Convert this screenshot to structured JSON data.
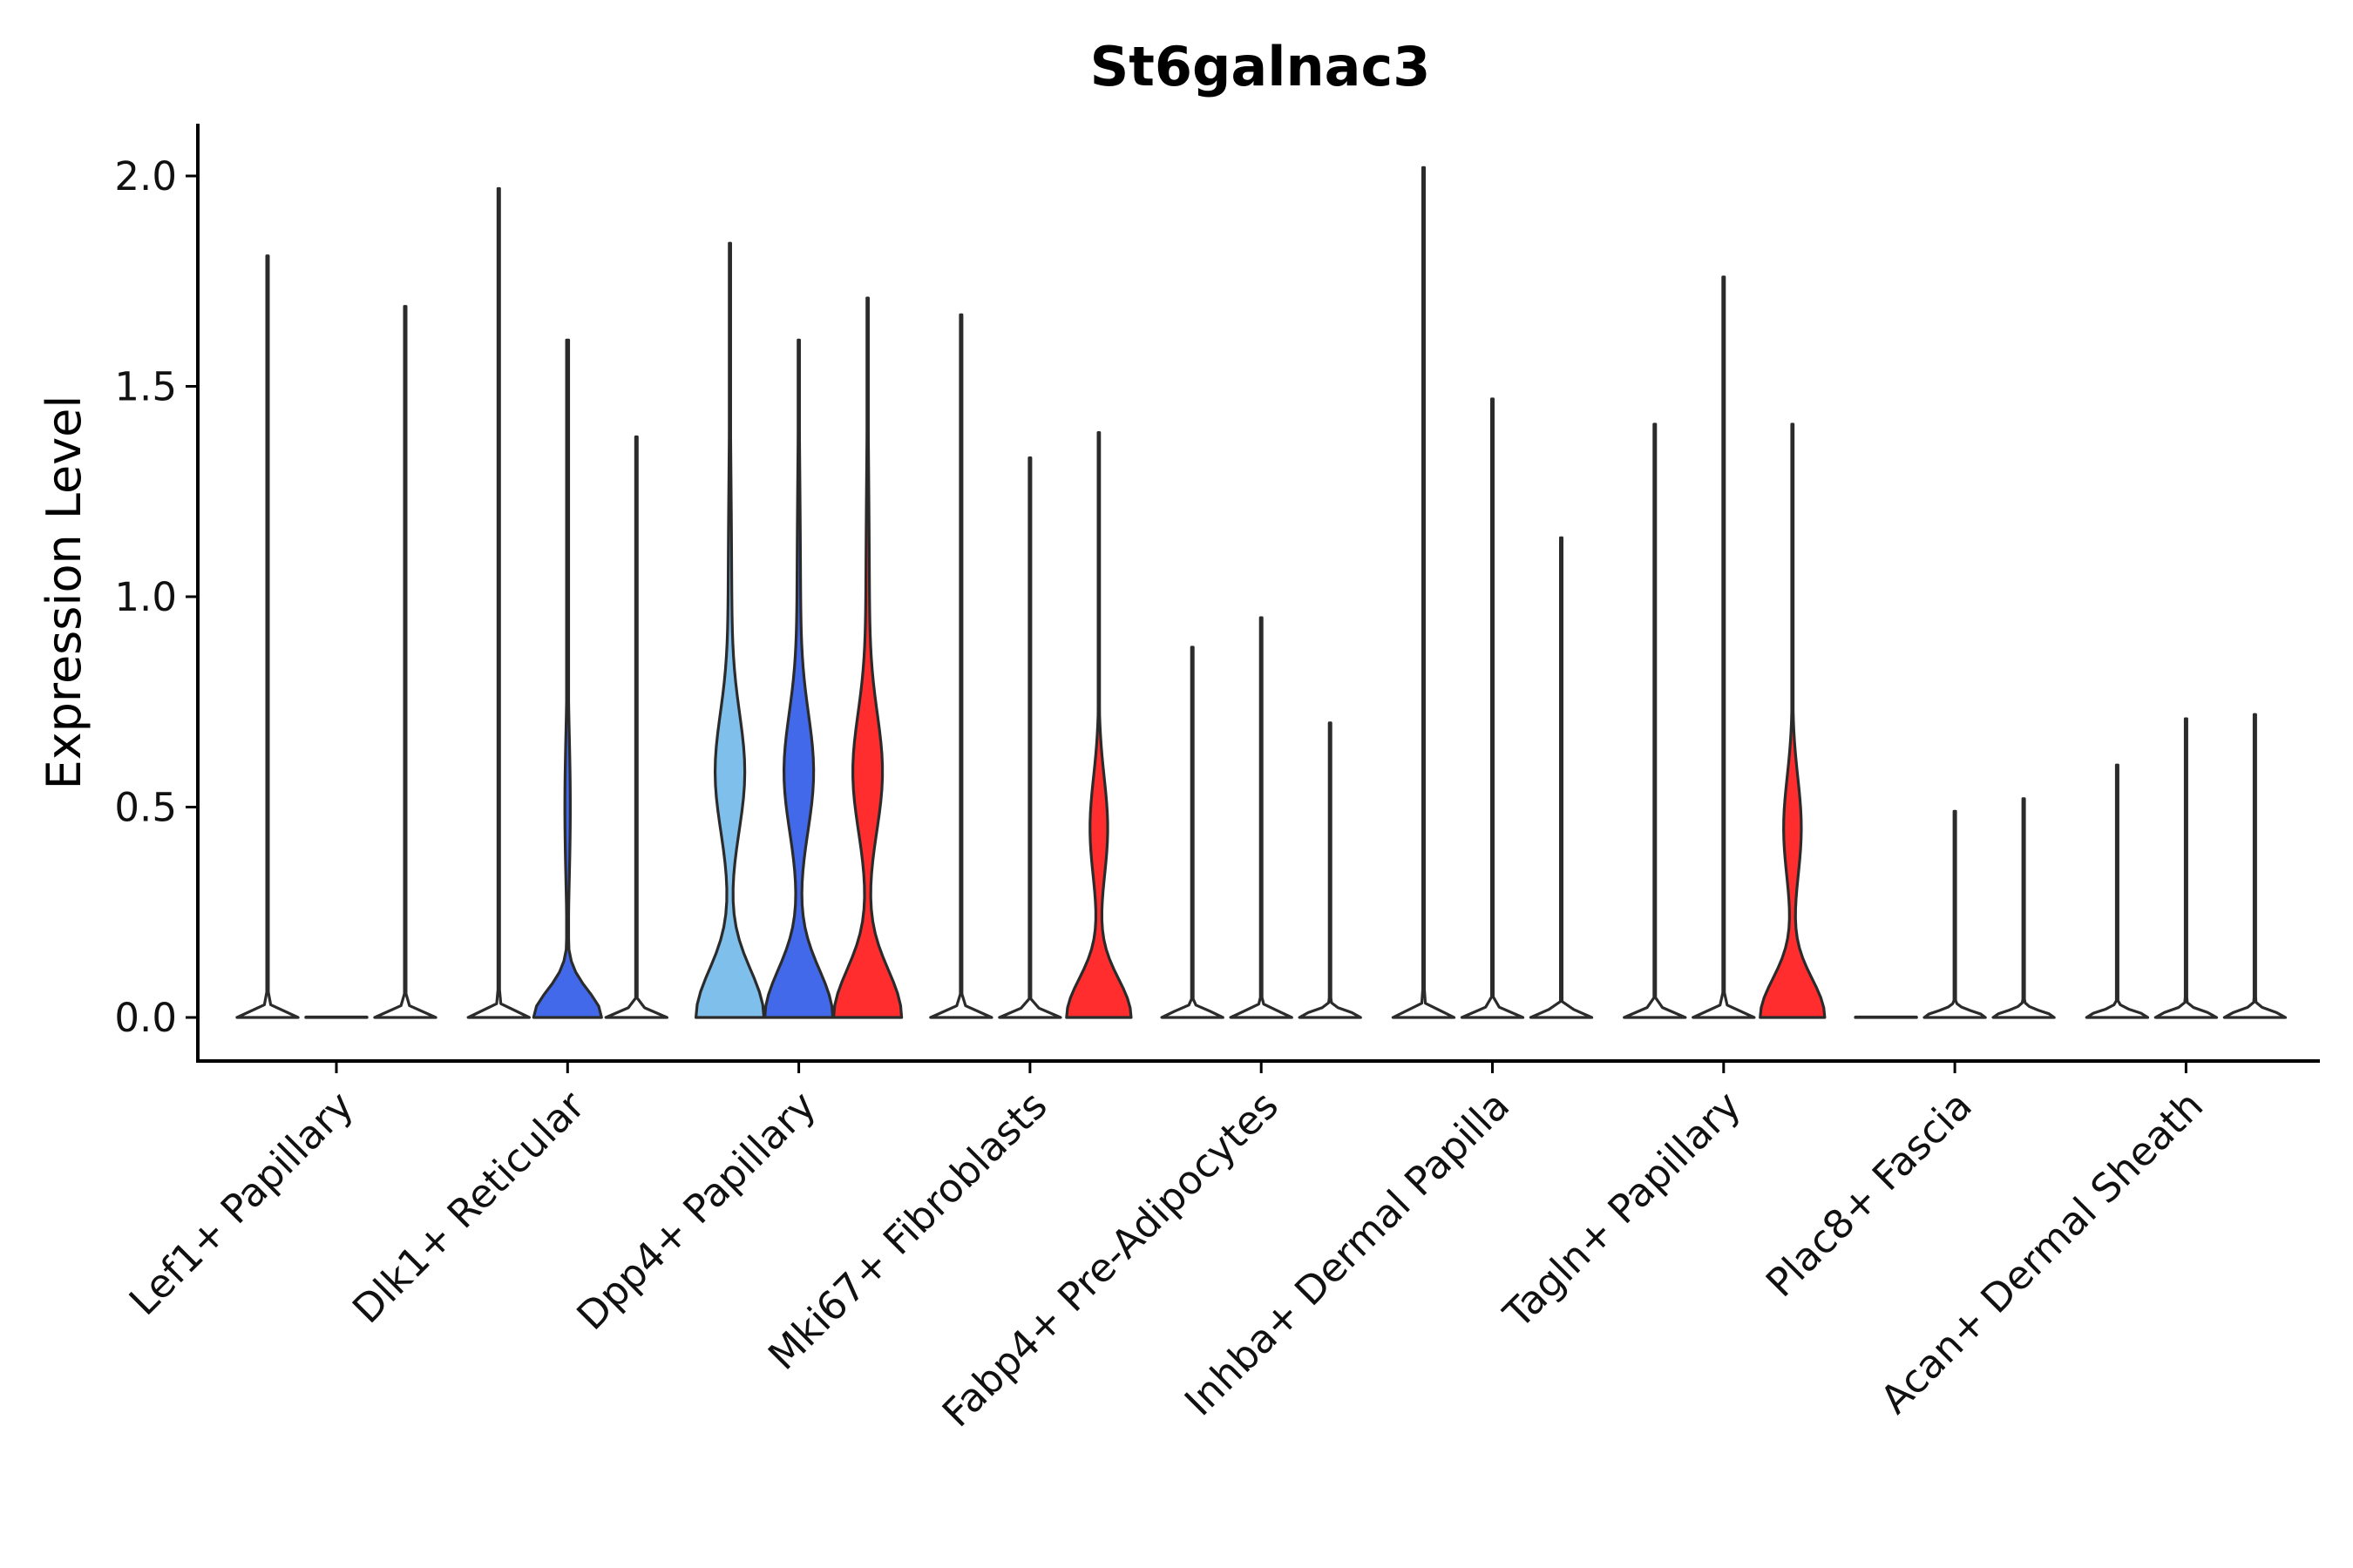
{
  "chart_data": {
    "type": "violin",
    "title": "St6galnac3",
    "xlabel": "",
    "ylabel": "Expression Level",
    "ylim": [
      -0.1,
      2.12
    ],
    "yticks": [
      {
        "value": 0.0,
        "label": "0.0"
      },
      {
        "value": 0.5,
        "label": "0.5"
      },
      {
        "value": 1.0,
        "label": "1.0"
      },
      {
        "value": 1.5,
        "label": "1.5"
      },
      {
        "value": 2.0,
        "label": "2.0"
      }
    ],
    "grid": false,
    "legend": "none",
    "sub_groups_per_category": 3,
    "colors": {
      "baseline": "#ffffff",
      "light_blue": "#7fbfeb",
      "blue": "#4169e9",
      "red": "#ff2d2d",
      "outline": "#2b2b2b"
    },
    "categories": [
      "Lef1+ Papillary",
      "Dlk1+ Reticular",
      "Dpp4+ Papillary",
      "Mki67+ Fibroblasts",
      "Fabp4+ Pre-Adipocytes",
      "Inhba+ Dermal Papilla",
      "Tagln+ Papillary",
      "Plac8+ Fascia",
      "Acan+ Dermal Sheath"
    ],
    "violins": [
      {
        "category": 0,
        "slot": 0,
        "max": 1.81,
        "shape": "spike",
        "color": "baseline"
      },
      {
        "category": 0,
        "slot": 1,
        "max": 0.0,
        "shape": "flat",
        "color": "baseline"
      },
      {
        "category": 0,
        "slot": 2,
        "max": 1.69,
        "shape": "spike",
        "color": "baseline"
      },
      {
        "category": 1,
        "slot": 0,
        "max": 1.97,
        "shape": "spike",
        "color": "baseline"
      },
      {
        "category": 1,
        "slot": 1,
        "max": 1.61,
        "shape": "low",
        "color": "blue"
      },
      {
        "category": 1,
        "slot": 2,
        "max": 1.38,
        "shape": "spike",
        "color": "baseline"
      },
      {
        "category": 2,
        "slot": 0,
        "max": 1.84,
        "shape": "wide",
        "color": "light_blue"
      },
      {
        "category": 2,
        "slot": 1,
        "max": 1.61,
        "shape": "wide",
        "color": "blue"
      },
      {
        "category": 2,
        "slot": 2,
        "max": 1.71,
        "shape": "wide",
        "color": "red"
      },
      {
        "category": 3,
        "slot": 0,
        "max": 1.67,
        "shape": "spike",
        "color": "baseline"
      },
      {
        "category": 3,
        "slot": 1,
        "max": 1.33,
        "shape": "spike",
        "color": "baseline"
      },
      {
        "category": 3,
        "slot": 2,
        "max": 1.39,
        "shape": "medium",
        "color": "red"
      },
      {
        "category": 4,
        "slot": 0,
        "max": 0.88,
        "shape": "spike",
        "color": "baseline"
      },
      {
        "category": 4,
        "slot": 1,
        "max": 0.95,
        "shape": "spike",
        "color": "baseline"
      },
      {
        "category": 4,
        "slot": 2,
        "max": 0.7,
        "shape": "spike",
        "color": "baseline"
      },
      {
        "category": 5,
        "slot": 0,
        "max": 2.02,
        "shape": "spike",
        "color": "baseline"
      },
      {
        "category": 5,
        "slot": 1,
        "max": 1.47,
        "shape": "spike",
        "color": "baseline"
      },
      {
        "category": 5,
        "slot": 2,
        "max": 1.14,
        "shape": "spike",
        "color": "baseline"
      },
      {
        "category": 6,
        "slot": 0,
        "max": 1.41,
        "shape": "spike",
        "color": "baseline"
      },
      {
        "category": 6,
        "slot": 1,
        "max": 1.76,
        "shape": "spike",
        "color": "baseline"
      },
      {
        "category": 6,
        "slot": 2,
        "max": 1.41,
        "shape": "medium",
        "color": "red"
      },
      {
        "category": 7,
        "slot": 0,
        "max": 0.0,
        "shape": "flat",
        "color": "baseline"
      },
      {
        "category": 7,
        "slot": 1,
        "max": 0.49,
        "shape": "spike",
        "color": "baseline"
      },
      {
        "category": 7,
        "slot": 2,
        "max": 0.52,
        "shape": "spike",
        "color": "baseline"
      },
      {
        "category": 8,
        "slot": 0,
        "max": 0.6,
        "shape": "spike",
        "color": "baseline"
      },
      {
        "category": 8,
        "slot": 1,
        "max": 0.71,
        "shape": "spike",
        "color": "baseline"
      },
      {
        "category": 8,
        "slot": 2,
        "max": 0.72,
        "shape": "spike",
        "color": "baseline"
      }
    ]
  }
}
